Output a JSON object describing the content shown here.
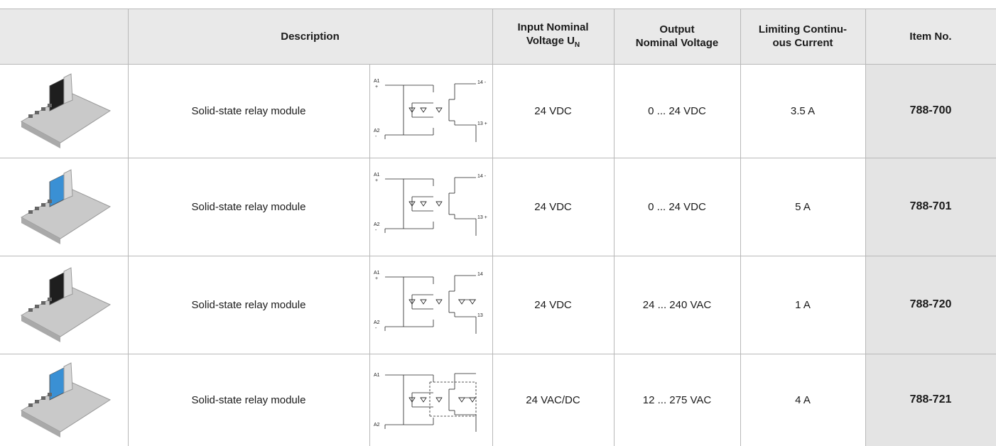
{
  "table": {
    "header": {
      "description": "Description",
      "input": {
        "lines": [
          "Input Nominal",
          "Voltage U"
        ],
        "sub": "N"
      },
      "output": {
        "lines": [
          "Output",
          "Nominal Voltage"
        ]
      },
      "current": {
        "lines": [
          "Limiting Continu-",
          "ous Current"
        ]
      },
      "item": "Item No."
    },
    "rows": [
      {
        "description": "Solid-state relay module",
        "diagram_labels": [
          "A1",
          "+",
          "A2",
          "-",
          "14 -",
          "13 +"
        ],
        "input": "24 VDC",
        "output": "0 ... 24 VDC",
        "current": "3.5 A",
        "item": "788-700"
      },
      {
        "description": "Solid-state relay module",
        "diagram_labels": [
          "A1",
          "+",
          "A2",
          "-",
          "14 -",
          "13 +"
        ],
        "input": "24 VDC",
        "output": "0 ... 24 VDC",
        "current": "5 A",
        "item": "788-701"
      },
      {
        "description": "Solid-state relay module",
        "diagram_labels": [
          "A1",
          "+",
          "A2",
          "-",
          "14",
          "13"
        ],
        "input": "24 VDC",
        "output": "24 ... 240 VAC",
        "current": "1 A",
        "item": "788-720"
      },
      {
        "description": "Solid-state relay module",
        "diagram_labels": [
          "A1",
          "A2"
        ],
        "input": "24 VAC/DC",
        "output": "12 ... 275 VAC",
        "current": "4 A",
        "item": "788-721"
      }
    ]
  }
}
